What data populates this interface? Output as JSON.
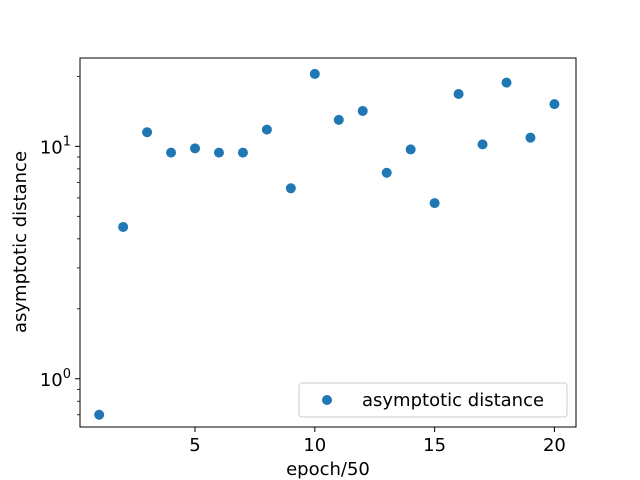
{
  "chart_data": {
    "type": "scatter",
    "xlabel": "epoch/50",
    "ylabel": "asymptotic distance",
    "y_scale": "log",
    "xlim": [
      0.2,
      20.9
    ],
    "ylim": [
      0.62,
      24
    ],
    "x_ticks": [
      {
        "value": 5,
        "label": "5"
      },
      {
        "value": 10,
        "label": "10"
      },
      {
        "value": 15,
        "label": "15"
      },
      {
        "value": 20,
        "label": "20"
      }
    ],
    "y_ticks": [
      {
        "value": 1,
        "label": "10",
        "exp": "0"
      },
      {
        "value": 10,
        "label": "10",
        "exp": "1"
      }
    ],
    "grid": false,
    "legend": {
      "position": "lower right"
    },
    "series": [
      {
        "name": "asymptotic distance",
        "color": "#1f77b4",
        "marker": "circle",
        "x": [
          1,
          2,
          3,
          4,
          5,
          6,
          7,
          8,
          9,
          10,
          11,
          12,
          13,
          14,
          15,
          16,
          17,
          18,
          19,
          20
        ],
        "y": [
          0.7,
          4.5,
          11.5,
          9.4,
          9.8,
          9.4,
          9.4,
          11.8,
          6.6,
          20.5,
          13.0,
          14.2,
          7.7,
          9.7,
          5.7,
          16.8,
          10.2,
          18.8,
          10.9,
          15.2
        ]
      }
    ]
  }
}
